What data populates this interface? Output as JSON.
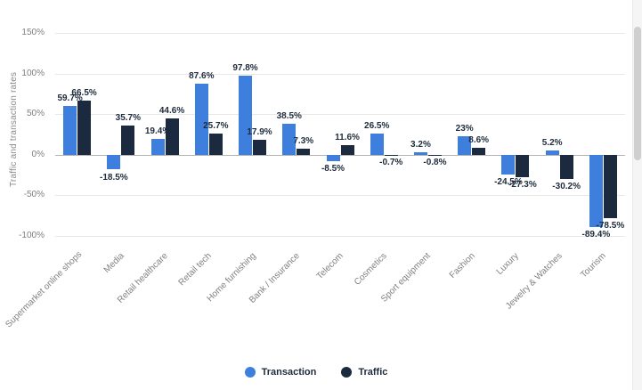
{
  "chart_data": {
    "type": "bar",
    "title": "",
    "ylabel": "Traffic and transaction rates",
    "categories": [
      "Supermarket online shops",
      "Media",
      "Retail healthcare",
      "Retail tech",
      "Home furnishing",
      "Bank / Insurance",
      "Telecom",
      "Cosmetics",
      "Sport equipment",
      "Fashion",
      "Luxury",
      "Jewelry & Watches",
      "Tourism"
    ],
    "series": [
      {
        "name": "Transaction",
        "color": "#3e7fde",
        "values": [
          59.7,
          -18.5,
          19.4,
          87.6,
          97.8,
          38.5,
          -8.5,
          26.5,
          3.2,
          23,
          -24.5,
          5.2,
          -89.4
        ]
      },
      {
        "name": "Traffic",
        "color": "#1b2a3f",
        "values": [
          66.5,
          35.7,
          44.6,
          25.7,
          17.9,
          7.3,
          11.6,
          -0.7,
          -0.8,
          8.6,
          -27.3,
          -30.2,
          -78.5
        ]
      }
    ],
    "yticks": [
      150,
      100,
      50,
      0,
      -50,
      -100
    ],
    "ytick_suffix": "%",
    "ylim": [
      -108,
      160
    ],
    "grid": true,
    "value_labels": true,
    "legend_position": "bottom",
    "style": {
      "grid_color": "#e8e8e8",
      "zero_line_color": "#b3b3b3",
      "axis_text_color": "#7f7f7f",
      "value_label_color": "#1e2b3c",
      "background": "#ffffff"
    }
  }
}
